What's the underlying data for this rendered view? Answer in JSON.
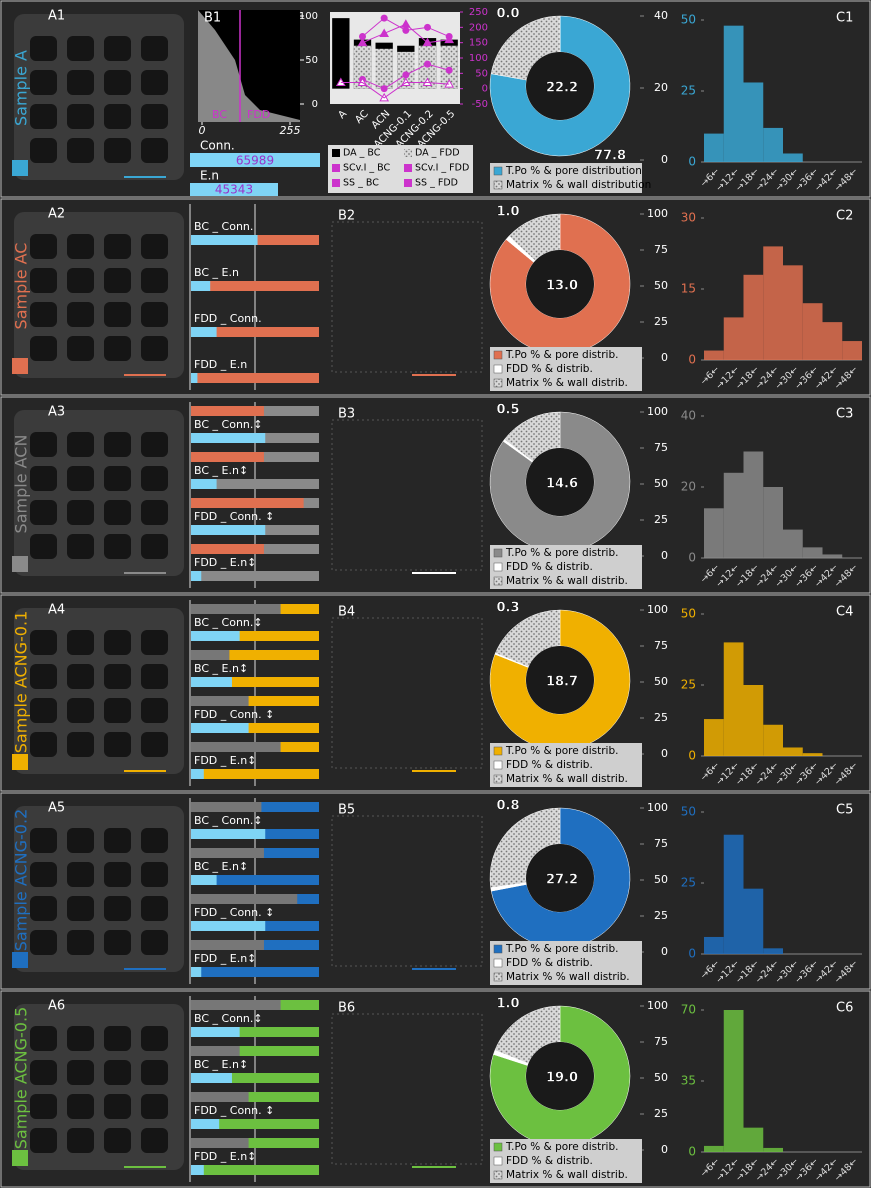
{
  "rows": [
    {
      "sample": "Sample A",
      "color": "#3aa7d4",
      "photo_label": "A1",
      "b1": {
        "label": "B1",
        "ylim": [
          0,
          100
        ],
        "yticks": [
          0,
          50,
          100
        ],
        "xlim": [
          0,
          255
        ],
        "xticks": [
          0,
          255
        ],
        "bc": "BC",
        "fdd": "FDD",
        "conn_label": "Conn.",
        "conn_value": 65989,
        "en_label": "E.n",
        "en_value": 45343
      },
      "mini": {
        "categories": [
          "A",
          "AC",
          "ACN",
          "ACNG-0.1",
          "ACNG-0.2",
          "ACNG-0.5"
        ],
        "ylim": [
          -50,
          250
        ],
        "yticks": [
          -50,
          0,
          50,
          100,
          150,
          200,
          250
        ],
        "series": [
          {
            "name": "DA _ BC",
            "color": "#000000",
            "values": [
              230,
              160,
              150,
              140,
              165,
              160
            ]
          },
          {
            "name": "DA _ FDD",
            "color": "#bbbbbb",
            "values": [
              0,
              140,
              130,
              120,
              140,
              140
            ]
          },
          {
            "name": "SCv.I _ BC",
            "color": "#cc33cc",
            "values": [
              null,
              30,
              0,
              45,
              80,
              60
            ]
          },
          {
            "name": "SCv.I _ FDD",
            "color": "#cc33cc",
            "values": [
              null,
              170,
              230,
              190,
              200,
              170
            ]
          },
          {
            "name": "SS _ BC",
            "color": "#cc33cc",
            "values": [
              20,
              20,
              -30,
              20,
              20,
              15
            ]
          },
          {
            "name": "SS _ FDD",
            "color": "#cc33cc",
            "values": [
              null,
              150,
              180,
              210,
              150,
              160
            ]
          }
        ]
      },
      "donut": {
        "values": [
          77.8,
          0.0,
          22.2
        ],
        "value_labels": [
          "77.8",
          "0.0",
          "22.2"
        ],
        "legend": [
          "T.Po % & pore distribution",
          "Matrix % & wall distribution"
        ],
        "ylim": [
          0,
          40
        ],
        "yticks": [
          0,
          20,
          40
        ]
      },
      "hist": {
        "label": "C1",
        "ylim": [
          0,
          50
        ],
        "yticks": [
          0,
          25,
          50
        ],
        "categories": [
          "→6←",
          "→12←",
          "→18←",
          "→24←",
          "→30←",
          "→36←",
          "→42←",
          "→48←"
        ],
        "values": [
          10,
          48,
          28,
          12,
          3,
          0,
          0,
          0
        ]
      }
    },
    {
      "sample": "Sample AC",
      "color": "#e07050",
      "photo_label": "A2",
      "b_label": "B2",
      "bars": [
        {
          "label": "BC _ Conn.",
          "values": [
            null,
            52
          ]
        },
        {
          "label": "BC _ E.n",
          "values": [
            null,
            15
          ]
        },
        {
          "label": "FDD _ Conn.",
          "values": [
            null,
            20
          ]
        },
        {
          "label": "FDD _ E.n",
          "values": [
            null,
            5
          ]
        }
      ],
      "donut": {
        "values": [
          86.0,
          1.0,
          13.0
        ],
        "value_labels": [
          "86.0",
          "1.0",
          "13.0"
        ],
        "legend": [
          "T.Po % & pore distrib.",
          "FDD % & distrib.",
          "Matrix % & wall distrib."
        ],
        "ylim": [
          0,
          100
        ],
        "yticks": [
          0,
          25,
          50,
          75,
          100
        ]
      },
      "hist": {
        "label": "C2",
        "ylim": [
          0,
          30
        ],
        "yticks": [
          0,
          15,
          30
        ],
        "categories": [
          "→6←",
          "→12←",
          "→18←",
          "→24←",
          "→30←",
          "→36←",
          "→42←",
          "→48←"
        ],
        "values": [
          2,
          9,
          18,
          24,
          20,
          12,
          8,
          4
        ]
      }
    },
    {
      "sample": "Sample ACN",
      "color": "#8a8a8a",
      "photo_label": "A3",
      "b_label": "B3",
      "bars": [
        {
          "label": "BC _ Conn.↕",
          "values": [
            57,
            58
          ]
        },
        {
          "label": "BC _ E.n↕",
          "values": [
            57,
            20
          ]
        },
        {
          "label": "FDD _ Conn. ↕",
          "values": [
            88,
            58
          ]
        },
        {
          "label": "FDD _ E.n↕",
          "values": [
            57,
            8
          ]
        }
      ],
      "donut": {
        "values": [
          84.9,
          0.5,
          14.6
        ],
        "value_labels": [
          "84.9",
          "0.5",
          "14.6"
        ],
        "legend": [
          "T.Po % & pore distrib.",
          "FDD % & distrib.",
          "Matrix % & wall distrib."
        ],
        "ylim": [
          0,
          100
        ],
        "yticks": [
          0,
          25,
          50,
          75,
          100
        ]
      },
      "hist": {
        "label": "C3",
        "ylim": [
          0,
          40
        ],
        "yticks": [
          0,
          20,
          40
        ],
        "categories": [
          "→6←",
          "→12←",
          "→18←",
          "→24←",
          "→30←",
          "→36←",
          "→42←",
          "→48←"
        ],
        "values": [
          14,
          24,
          30,
          20,
          8,
          3,
          1,
          0
        ]
      }
    },
    {
      "sample": "Sample ACNG-0.1",
      "color": "#f0b000",
      "photo_label": "A4",
      "b_label": "B4",
      "bars": [
        {
          "label": "BC _ Conn.↕",
          "values": [
            70,
            38
          ]
        },
        {
          "label": "BC _ E.n↕",
          "values": [
            30,
            32
          ]
        },
        {
          "label": "FDD _ Conn. ↕",
          "values": [
            45,
            45
          ]
        },
        {
          "label": "FDD _ E.n↕",
          "values": [
            70,
            10
          ]
        }
      ],
      "donut": {
        "values": [
          81.0,
          0.3,
          18.7
        ],
        "value_labels": [
          "81.0",
          "0.3",
          "18.7"
        ],
        "legend": [
          "T.Po % & pore distrib.",
          "FDD % & distrib.",
          "Matrix % & wall distrib."
        ],
        "ylim": [
          0,
          100
        ],
        "yticks": [
          0,
          25,
          50,
          75,
          100
        ]
      },
      "hist": {
        "label": "C4",
        "ylim": [
          0,
          50
        ],
        "yticks": [
          0,
          25,
          50
        ],
        "categories": [
          "→6←",
          "→12←",
          "→18←",
          "→24←",
          "→30←",
          "→36←",
          "→42←",
          "→48←"
        ],
        "values": [
          13,
          40,
          25,
          11,
          3,
          1,
          0,
          0
        ]
      }
    },
    {
      "sample": "Sample ACNG-0.2",
      "color": "#1f6fc0",
      "photo_label": "A5",
      "b_label": "B5",
      "bars": [
        {
          "label": "BC _ Conn.↕",
          "values": [
            55,
            58
          ]
        },
        {
          "label": "BC _ E.n↕",
          "values": [
            57,
            20
          ]
        },
        {
          "label": "FDD _ Conn. ↕",
          "values": [
            83,
            58
          ]
        },
        {
          "label": "FDD _ E.n↕",
          "values": [
            57,
            8
          ]
        }
      ],
      "donut": {
        "values": [
          72.0,
          0.8,
          27.2
        ],
        "value_labels": [
          "72.0",
          "0.8",
          "27.2"
        ],
        "legend": [
          "T.Po % & pore distrib.",
          "FDD % & distrib.",
          "Matrix % % wall distrib."
        ],
        "ylim": [
          0,
          100
        ],
        "yticks": [
          0,
          25,
          50,
          75,
          100
        ]
      },
      "hist": {
        "label": "C5",
        "ylim": [
          0,
          50
        ],
        "yticks": [
          0,
          25,
          50
        ],
        "categories": [
          "→6←",
          "→12←",
          "→18←",
          "→24←",
          "→30←",
          "→36←",
          "→42←",
          "→48←"
        ],
        "values": [
          6,
          42,
          23,
          2,
          0,
          0,
          0,
          0
        ]
      }
    },
    {
      "sample": "Sample ACNG-0.5",
      "color": "#6cc040",
      "photo_label": "A6",
      "b_label": "B6",
      "bars": [
        {
          "label": "BC _ Conn.↕",
          "values": [
            70,
            38
          ]
        },
        {
          "label": "BC _ E.n↕",
          "values": [
            38,
            32
          ]
        },
        {
          "label": "FDD _ Conn. ↕",
          "values": [
            45,
            22
          ]
        },
        {
          "label": "FDD _ E.n↕",
          "values": [
            45,
            10
          ]
        }
      ],
      "donut": {
        "values": [
          80.0,
          1.0,
          19.0
        ],
        "value_labels": [
          "80.0",
          "1.0",
          "19.0"
        ],
        "legend": [
          "T.Po % & pore distrib.",
          "FDD % & distrib.",
          "Matrix % & wall distrib."
        ],
        "ylim": [
          0,
          100
        ],
        "yticks": [
          0,
          25,
          50,
          75,
          100
        ]
      },
      "hist": {
        "label": "C6",
        "ylim": [
          0,
          70
        ],
        "yticks": [
          0,
          35,
          70
        ],
        "categories": [
          "→6←",
          "→12←",
          "→18←",
          "→24←",
          "→30←",
          "→36←",
          "→42←",
          "→48←"
        ],
        "values": [
          3,
          70,
          12,
          2,
          0,
          0,
          0,
          0
        ]
      }
    }
  ]
}
